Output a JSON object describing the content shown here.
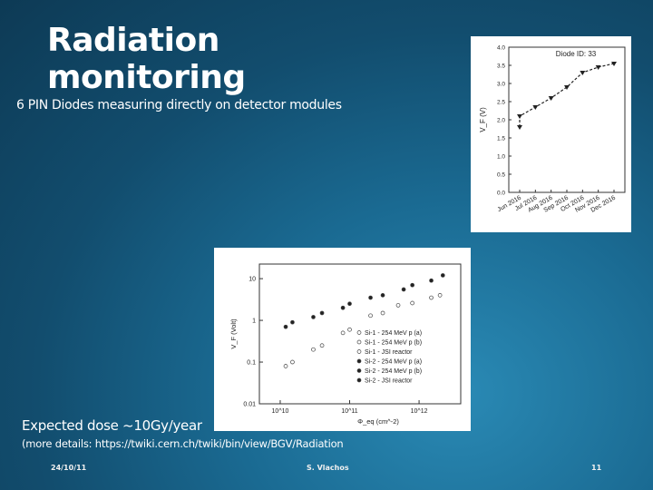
{
  "slide": {
    "title": "Radiation monitoring",
    "subtitle": "6 PIN Diodes measuring directly on detector modules",
    "dose": "Expected dose ~10Gy/year",
    "details": "(more details: https://twiki.cern.ch/twiki/bin/view/BGV/Radiation",
    "footer_date": "24/10/11",
    "footer_author": "S. Vlachos",
    "footer_page": "11"
  },
  "chart_data": [
    {
      "type": "line",
      "title": "Diode ID: 33",
      "ylabel": "V_F (V)",
      "ylim": [
        0,
        4.0
      ],
      "y_ticks": [
        "0.0",
        "0.5",
        "1.0",
        "1.5",
        "2.0",
        "2.5",
        "3.0",
        "3.5",
        "4.0"
      ],
      "x_ticks": [
        "Jun 2016",
        "Jul 2016",
        "Aug 2016",
        "Sep 2016",
        "Oct 2016",
        "Nov 2016",
        "Dec 2016"
      ],
      "series": [
        {
          "points": [
            {
              "x": "Jun 2016",
              "y": 1.8
            },
            {
              "x": "Jun 2016",
              "y": 2.1
            },
            {
              "x": "Jul 2016",
              "y": 2.35
            },
            {
              "x": "Aug 2016",
              "y": 2.6
            },
            {
              "x": "Sep 2016",
              "y": 2.9
            },
            {
              "x": "Oct 2016",
              "y": 3.3
            },
            {
              "x": "Nov 2016",
              "y": 3.45
            },
            {
              "x": "Dec 2016",
              "y": 3.55
            }
          ]
        }
      ]
    },
    {
      "type": "scatter",
      "xlabel": "Φ_eq (cm^-2)",
      "ylabel": "V_F (Volt)",
      "x_scale": "log",
      "y_scale": "log",
      "x_ticks": [
        "10^10",
        "10^11",
        "10^12"
      ],
      "y_ticks": [
        "0.01",
        "0.1",
        "1",
        "10"
      ],
      "legend": [
        "Si-1 - 254 MeV p (a)",
        "Si-1 - 254 MeV p (b)",
        "Si-1 - JSI reactor",
        "Si-2 - 254 MeV p (a)",
        "Si-2 - 254 MeV p (b)",
        "Si-2 - JSI reactor"
      ],
      "legend_position": "bottom-right",
      "series": [
        {
          "name": "Si-1 - 254 MeV p (a)",
          "open": true,
          "points": [
            [
              12000000000.0,
              0.08
            ],
            [
              30000000000.0,
              0.2
            ],
            [
              80000000000.0,
              0.5
            ],
            [
              200000000000.0,
              1.3
            ],
            [
              500000000000.0,
              2.3
            ],
            [
              1500000000000.0,
              3.5
            ]
          ]
        },
        {
          "name": "Si-1 - 254 MeV p (b)",
          "open": true,
          "points": [
            [
              15000000000.0,
              0.1
            ],
            [
              40000000000.0,
              0.25
            ],
            [
              100000000000.0,
              0.6
            ],
            [
              300000000000.0,
              1.5
            ],
            [
              800000000000.0,
              2.6
            ],
            [
              2000000000000.0,
              4
            ]
          ]
        },
        {
          "name": "Si-2 - 254 MeV p (a)",
          "open": false,
          "points": [
            [
              12000000000.0,
              0.7
            ],
            [
              30000000000.0,
              1.2
            ],
            [
              80000000000.0,
              2
            ],
            [
              200000000000.0,
              3.5
            ],
            [
              600000000000.0,
              5.5
            ],
            [
              1500000000000.0,
              9
            ]
          ]
        },
        {
          "name": "Si-2 - 254 MeV p (b)",
          "open": false,
          "points": [
            [
              15000000000.0,
              0.9
            ],
            [
              40000000000.0,
              1.5
            ],
            [
              100000000000.0,
              2.5
            ],
            [
              300000000000.0,
              4
            ],
            [
              800000000000.0,
              7
            ],
            [
              2200000000000.0,
              12
            ]
          ]
        }
      ]
    }
  ]
}
